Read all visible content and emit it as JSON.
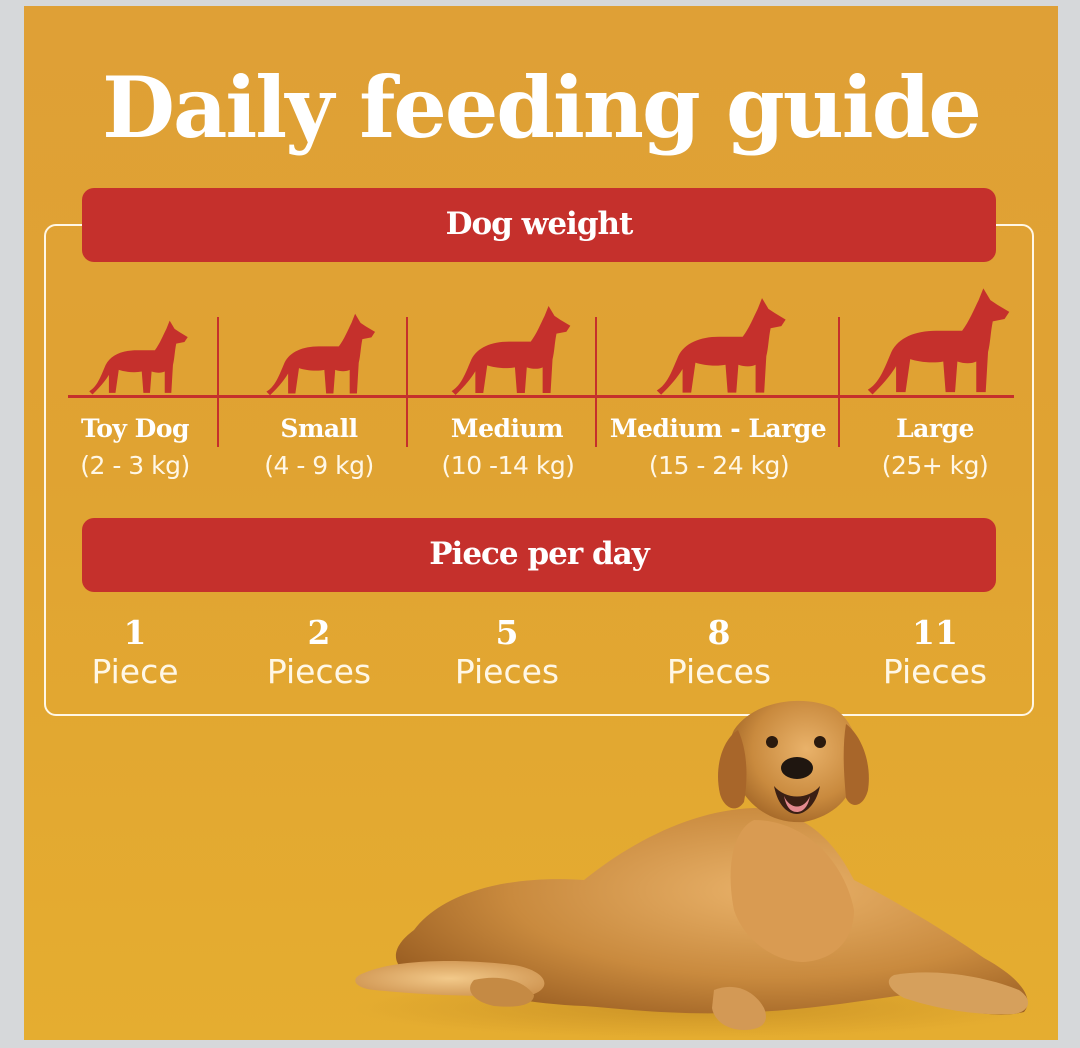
{
  "title": "Daily feeding guide",
  "weight_header": "Dog weight",
  "perday_header": "Piece per day",
  "colors": {
    "background": "#e0a332",
    "accent": "#c5302c",
    "text": "#ffffff"
  },
  "sizes": [
    {
      "label": "Toy Dog",
      "range": "(2 - 3 kg)",
      "count": "1",
      "unit": "Piece",
      "icon": "dog-silhouette-icon"
    },
    {
      "label": "Small",
      "range": "(4 - 9 kg)",
      "count": "2",
      "unit": "Pieces",
      "icon": "dog-silhouette-icon"
    },
    {
      "label": "Medium",
      "range": "(10 -14 kg)",
      "count": "5",
      "unit": "Pieces",
      "icon": "dog-silhouette-icon"
    },
    {
      "label": "Medium - Large",
      "range": "(15 - 24 kg)",
      "count": "8",
      "unit": "Pieces",
      "icon": "dog-silhouette-icon"
    },
    {
      "label": "Large",
      "range": "(25+ kg)",
      "count": "11",
      "unit": "Pieces",
      "icon": "dog-silhouette-icon"
    }
  ],
  "photo": {
    "subject": "golden-retriever-lying-photo"
  }
}
